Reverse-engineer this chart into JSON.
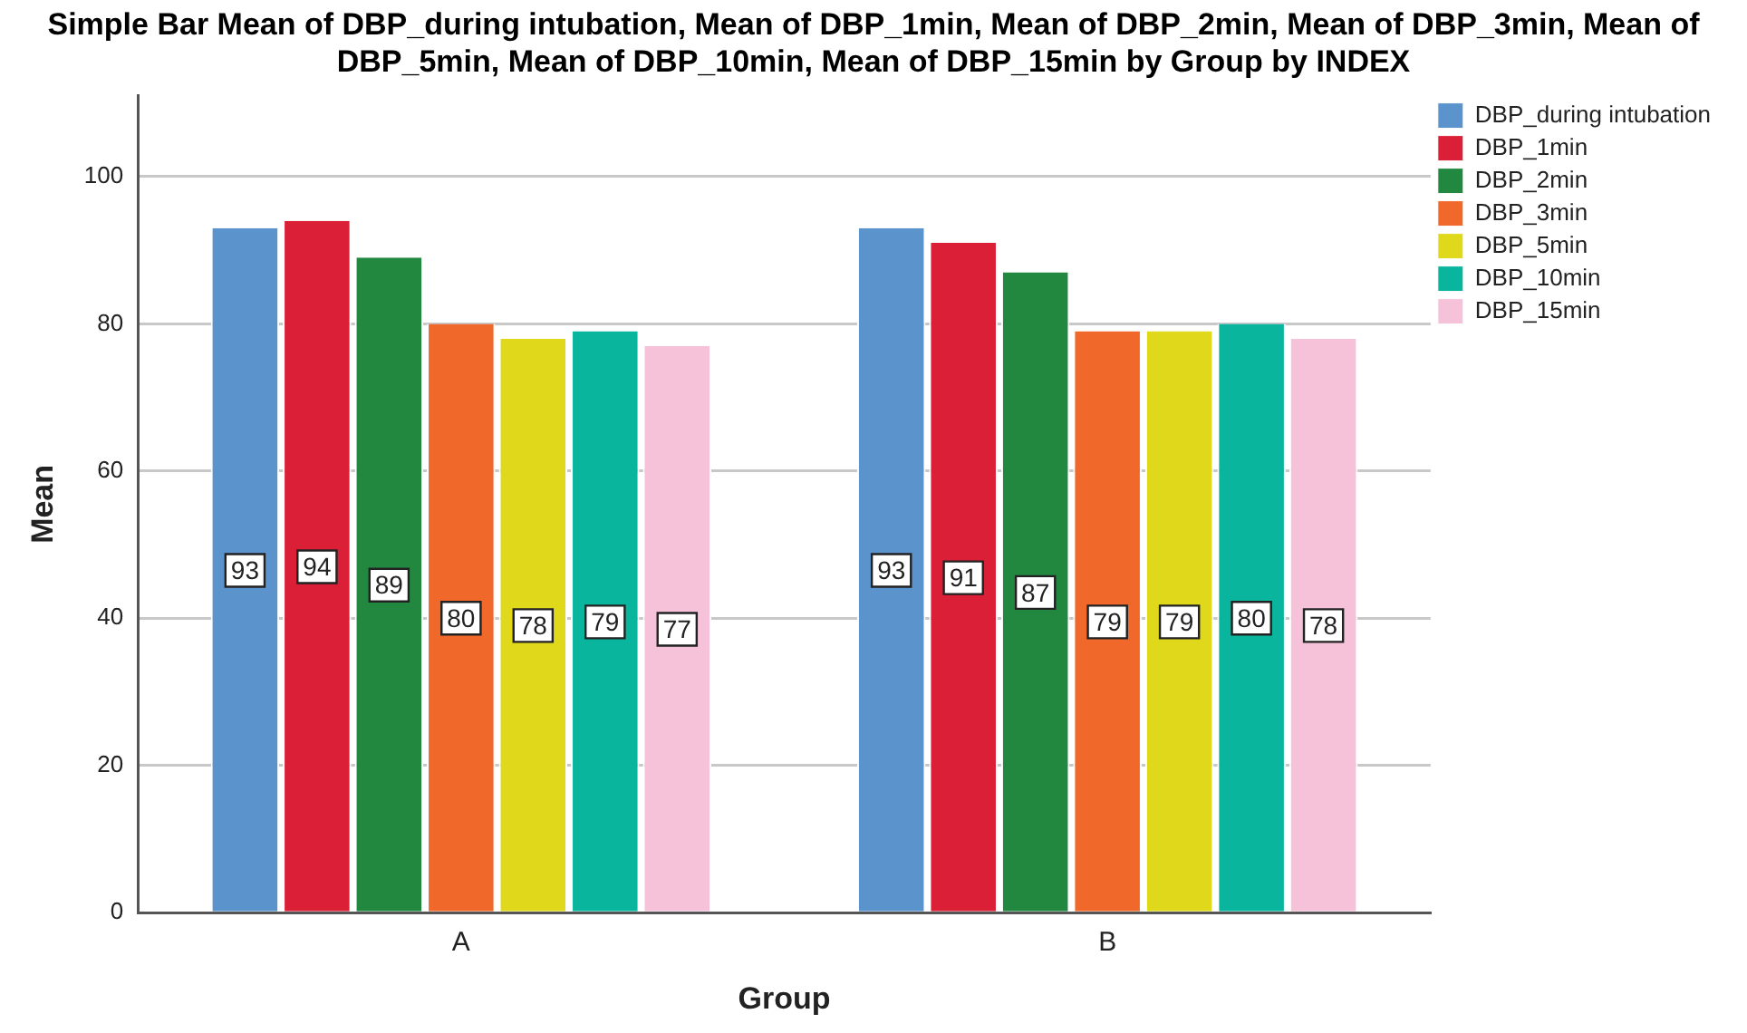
{
  "chart_data": {
    "type": "bar",
    "title": "Simple Bar Mean of DBP_during intubation, Mean of DBP_1min, Mean of DBP_2min, Mean of DBP_3min, Mean of DBP_5min, Mean of DBP_10min, Mean of DBP_15min by Group by INDEX",
    "xlabel": "Group",
    "ylabel": "Mean",
    "categories": [
      "A",
      "B"
    ],
    "series": [
      {
        "name": "DBP_during intubation",
        "color": "#5b93cd",
        "values": [
          93,
          93
        ]
      },
      {
        "name": "DBP_1min",
        "color": "#da1f36",
        "values": [
          94,
          91
        ]
      },
      {
        "name": "DBP_2min",
        "color": "#228840",
        "values": [
          89,
          87
        ]
      },
      {
        "name": "DBP_3min",
        "color": "#f0682a",
        "values": [
          80,
          79
        ]
      },
      {
        "name": "DBP_5min",
        "color": "#e0d81a",
        "values": [
          78,
          79
        ]
      },
      {
        "name": "DBP_10min",
        "color": "#0ab59e",
        "values": [
          79,
          80
        ]
      },
      {
        "name": "DBP_15min",
        "color": "#f5c2da",
        "values": [
          77,
          78
        ]
      }
    ],
    "ylim": [
      0,
      111
    ],
    "yticks": [
      0,
      20,
      40,
      60,
      80,
      100
    ],
    "grid": "y",
    "legend": "top right",
    "data_labels": true
  }
}
